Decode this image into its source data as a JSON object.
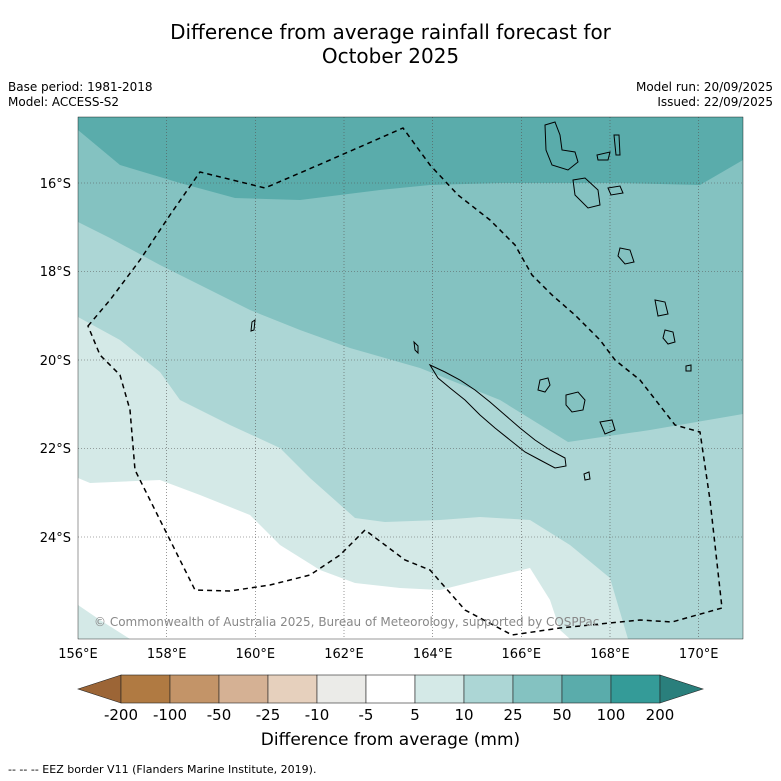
{
  "title_line1": "Difference from average rainfall forecast for",
  "title_line2": "October 2025",
  "meta_left": [
    "Base period: 1981-2018",
    "Model: ACCESS-S2"
  ],
  "meta_right": [
    "Model run: 20/09/2025",
    "Issued: 22/09/2025"
  ],
  "copyright": "© Commonwealth of Australia 2025, Bureau of Meteorology, supported by COSPPac",
  "map": {
    "lon_range": [
      156,
      171
    ],
    "lat_range": [
      -26.2,
      -14.5
    ],
    "lon_ticks": [
      "156°E",
      "158°E",
      "160°E",
      "162°E",
      "164°E",
      "166°E",
      "168°E",
      "170°E"
    ],
    "lat_ticks": [
      "16°S",
      "18°S",
      "20°S",
      "22°S",
      "24°S"
    ]
  },
  "colorbar": {
    "ticks": [
      "-200",
      "-100",
      "-50",
      "-25",
      "-10",
      "-5",
      "5",
      "10",
      "25",
      "50",
      "100",
      "200"
    ],
    "colors": [
      "#9c6536",
      "#b07a42",
      "#c39468",
      "#d5b194",
      "#e6d0bd",
      "#ebebe8",
      "#ffffff",
      "#d4e9e7",
      "#acd6d5",
      "#84c2c1",
      "#5aacab",
      "#349b98",
      "#2a7f7c"
    ],
    "title": "Difference from average (mm)"
  },
  "footer": "--  --  -- EEZ border V11 (Flanders Marine Institute, 2019)."
}
